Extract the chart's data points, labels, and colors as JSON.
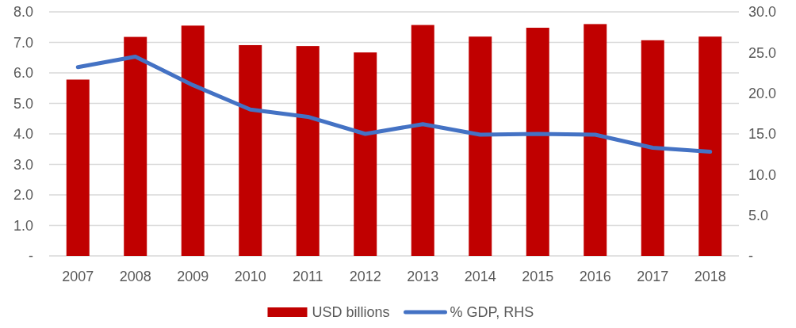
{
  "chart_data": {
    "type": "bar",
    "categories": [
      "2007",
      "2008",
      "2009",
      "2010",
      "2011",
      "2012",
      "2013",
      "2014",
      "2015",
      "2016",
      "2017",
      "2018"
    ],
    "series": [
      {
        "name": "USD billions",
        "color": "#c00000",
        "values": [
          5.78,
          7.18,
          7.55,
          6.91,
          6.88,
          6.67,
          7.57,
          7.19,
          7.48,
          7.6,
          7.07,
          7.19
        ]
      },
      {
        "name": "% GDP, RHS",
        "type": "line",
        "axis": "y2",
        "color": "#4472c4",
        "values": [
          23.2,
          24.5,
          21.0,
          18.0,
          17.1,
          15.0,
          16.2,
          14.9,
          15.0,
          14.9,
          13.3,
          12.8
        ]
      }
    ],
    "ylim": [
      0,
      8
    ],
    "yticks": [
      {
        "value": 0,
        "label": "-"
      },
      {
        "value": 1,
        "label": "1.0"
      },
      {
        "value": 2,
        "label": "2.0"
      },
      {
        "value": 3,
        "label": "3.0"
      },
      {
        "value": 4,
        "label": "4.0"
      },
      {
        "value": 5,
        "label": "5.0"
      },
      {
        "value": 6,
        "label": "6.0"
      },
      {
        "value": 7,
        "label": "7.0"
      },
      {
        "value": 8,
        "label": "8.0"
      }
    ],
    "y2lim": [
      0,
      30
    ],
    "y2ticks": [
      {
        "value": 0,
        "label": "-"
      },
      {
        "value": 5,
        "label": "5.0"
      },
      {
        "value": 10,
        "label": "10.0"
      },
      {
        "value": 15,
        "label": "15.0"
      },
      {
        "value": 20,
        "label": "20.0"
      },
      {
        "value": 25,
        "label": "25.0"
      },
      {
        "value": 30,
        "label": "30.0"
      }
    ],
    "grid": "y",
    "legend": "bottom"
  }
}
